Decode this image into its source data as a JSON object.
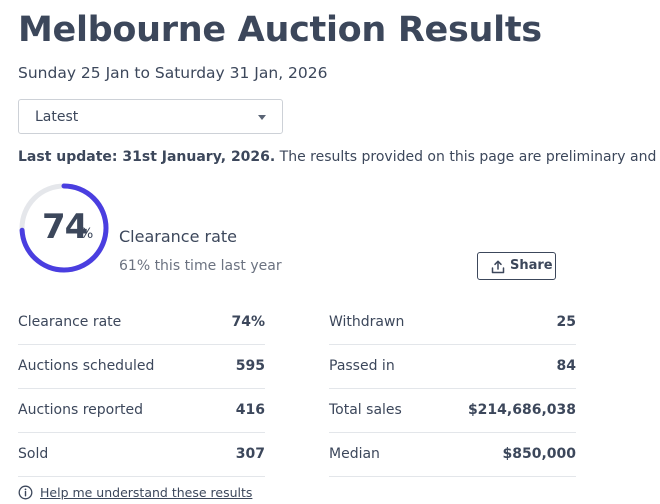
{
  "header": {
    "title": "Melbourne Auction Results",
    "date_range": "Sunday 25 Jan to Saturday 31 Jan, 2026"
  },
  "filter": {
    "selected": "Latest"
  },
  "update": {
    "label": "Last update: 31st January, 2026.",
    "text": " The results provided on this page are preliminary and current at the time of publication."
  },
  "clearance": {
    "value": "74",
    "value_fraction": 0.74,
    "unit": "%",
    "label": "Clearance rate",
    "last_year": "61% this time last year",
    "accent_color": "#4a3ee0",
    "track_color": "#e5e7eb"
  },
  "share": {
    "label": "Share",
    "icon": "share-upload-icon"
  },
  "stats": {
    "left": [
      {
        "label": "Clearance rate",
        "value": "74%"
      },
      {
        "label": "Auctions scheduled",
        "value": "595"
      },
      {
        "label": "Auctions reported",
        "value": "416"
      },
      {
        "label": "Sold",
        "value": "307"
      }
    ],
    "right": [
      {
        "label": "Withdrawn",
        "value": "25"
      },
      {
        "label": "Passed in",
        "value": "84"
      },
      {
        "label": "Total sales",
        "value": "$214,686,038"
      },
      {
        "label": "Median",
        "value": "$850,000"
      }
    ]
  },
  "help": {
    "icon": "info-icon",
    "link_text": "Help me understand these results"
  }
}
